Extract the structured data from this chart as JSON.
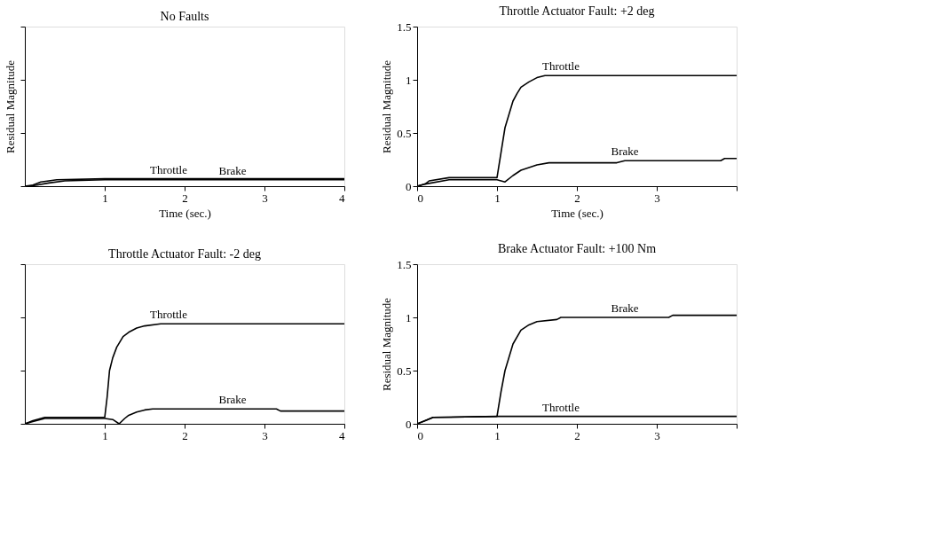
{
  "chart_data": [
    {
      "type": "line",
      "title": "No Faults",
      "xlabel": "Time (sec.)",
      "ylabel": "Residual Magnitude",
      "xlim": [
        0,
        4
      ],
      "ylim": [
        0,
        1.5
      ],
      "xticks": [
        1,
        2,
        3,
        4
      ],
      "yticks": [
        0,
        0.5,
        1,
        1.5
      ],
      "tick_labels": "x",
      "series": [
        {
          "name": "Throttle",
          "color": "#000000",
          "x": [
            0,
            0.1,
            0.2,
            0.4,
            1,
            2,
            3,
            4
          ],
          "values": [
            0,
            0.01,
            0.04,
            0.06,
            0.07,
            0.07,
            0.07,
            0.07
          ]
        },
        {
          "name": "Brake",
          "color": "#000000",
          "x": [
            0.05,
            0.15,
            0.3,
            0.5,
            1,
            2,
            3,
            4
          ],
          "values": [
            0,
            0.01,
            0.03,
            0.05,
            0.06,
            0.06,
            0.06,
            0.06
          ]
        }
      ]
    },
    {
      "type": "line",
      "title": "Throttle Actuator Fault: +2 deg",
      "xlabel": "Time (sec.)",
      "ylabel": "Residual Magnitude",
      "xlim": [
        0,
        4
      ],
      "ylim": [
        0,
        1.5
      ],
      "xticks": [
        0,
        1,
        2,
        3,
        {
          "value": 4,
          "label": null
        }
      ],
      "yticks": [
        0,
        0.5,
        1,
        1.5
      ],
      "series": [
        {
          "name": "Throttle",
          "color": "#000000",
          "x": [
            0,
            0.1,
            0.15,
            0.4,
            1,
            1.1,
            1.2,
            1.25,
            1.3,
            1.4,
            1.5,
            1.6,
            2,
            3,
            4
          ],
          "values": [
            0,
            0.02,
            0.05,
            0.08,
            0.08,
            0.55,
            0.8,
            0.87,
            0.93,
            0.98,
            1.02,
            1.04,
            1.04,
            1.04,
            1.04
          ]
        },
        {
          "name": "Brake",
          "color": "#000000",
          "x": [
            0,
            0.1,
            0.4,
            1,
            1.1,
            1.2,
            1.3,
            1.5,
            1.65,
            2.5,
            2.6,
            3.8,
            3.85,
            4
          ],
          "values": [
            0,
            0.02,
            0.06,
            0.06,
            0.04,
            0.1,
            0.15,
            0.2,
            0.22,
            0.22,
            0.24,
            0.24,
            0.26,
            0.26
          ]
        }
      ]
    },
    {
      "type": "line",
      "title": "Throttle Actuator Fault: -2 deg",
      "xlim": [
        0,
        4
      ],
      "ylim": [
        0,
        1.5
      ],
      "xticks": [
        1,
        2,
        3,
        4
      ],
      "yticks": [
        0,
        0.5,
        1,
        1.5
      ],
      "tick_labels": "x",
      "series": [
        {
          "name": "Throttle",
          "color": "#000000",
          "x": [
            0,
            0.1,
            0.25,
            1,
            1.03,
            1.06,
            1.1,
            1.15,
            1.23,
            1.3,
            1.4,
            1.5,
            1.7,
            2,
            3,
            4
          ],
          "values": [
            0,
            0.03,
            0.06,
            0.06,
            0.25,
            0.5,
            0.62,
            0.72,
            0.82,
            0.86,
            0.9,
            0.92,
            0.94,
            0.94,
            0.94,
            0.94
          ]
        },
        {
          "name": "Brake",
          "color": "#000000",
          "x": [
            0,
            0.1,
            0.25,
            1,
            1.1,
            1.18,
            1.25,
            1.3,
            1.4,
            1.5,
            1.6,
            3.15,
            3.2,
            4
          ],
          "values": [
            0,
            0.02,
            0.05,
            0.05,
            0.04,
            0,
            0.05,
            0.08,
            0.11,
            0.13,
            0.14,
            0.14,
            0.12,
            0.12
          ]
        }
      ]
    },
    {
      "type": "line",
      "title": "Brake Actuator Fault: +100 Nm",
      "ylabel": "Residual Magnitude",
      "xlim": [
        0,
        4
      ],
      "ylim": [
        0,
        1.5
      ],
      "xticks": [
        0,
        1,
        2,
        3,
        {
          "value": 4,
          "label": null
        }
      ],
      "yticks": [
        0,
        0.5,
        1,
        1.5
      ],
      "series": [
        {
          "name": "Throttle",
          "color": "#000000",
          "x": [
            0,
            0.1,
            0.2,
            1,
            2,
            3,
            4
          ],
          "values": [
            0,
            0.03,
            0.06,
            0.07,
            0.07,
            0.07,
            0.07
          ]
        },
        {
          "name": "Brake",
          "color": "#000000",
          "x": [
            0,
            0.1,
            0.2,
            1,
            1.05,
            1.1,
            1.2,
            1.3,
            1.4,
            1.5,
            1.75,
            1.8,
            3.15,
            3.2,
            4
          ],
          "values": [
            0,
            0.03,
            0.06,
            0.07,
            0.3,
            0.5,
            0.75,
            0.88,
            0.93,
            0.96,
            0.98,
            1.0,
            1.0,
            1.02,
            1.02
          ]
        }
      ]
    }
  ]
}
